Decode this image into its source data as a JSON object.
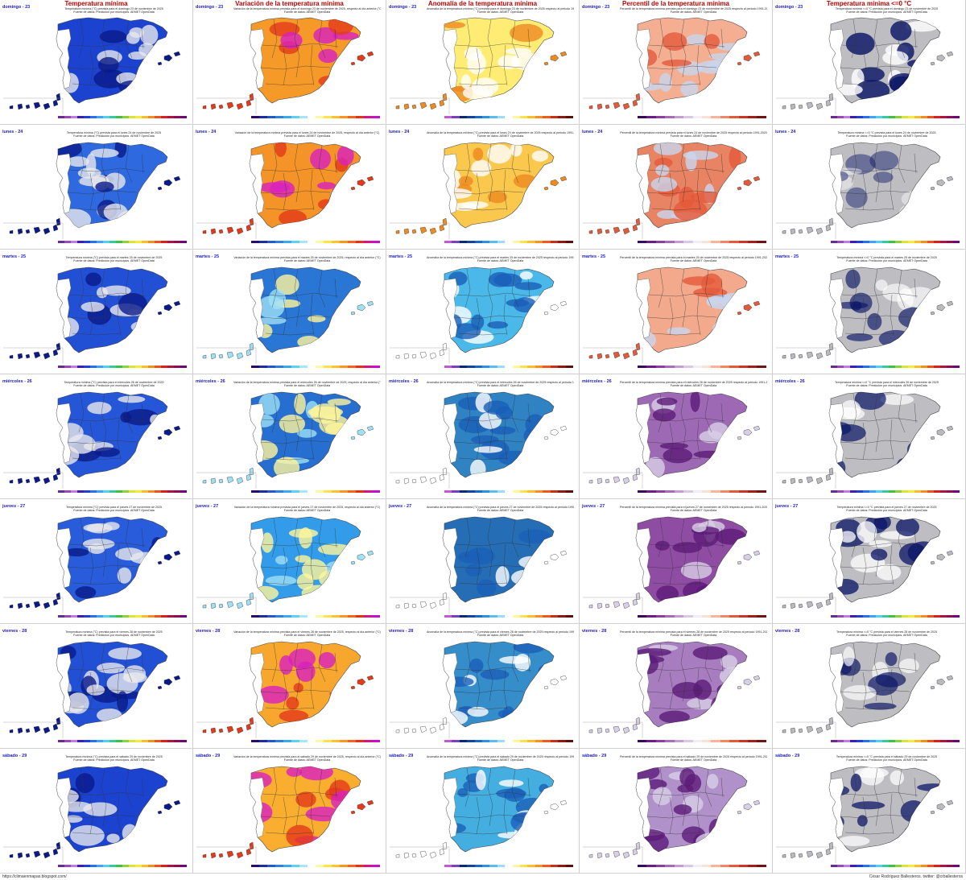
{
  "columns": [
    {
      "title": "Temperatura mínima",
      "style": "tmin"
    },
    {
      "title": "Variación de la temperatura mínima",
      "style": "var"
    },
    {
      "title": "Anomalía de la temperatura mínima",
      "style": "anom"
    },
    {
      "title": "Percentil de la temperatura mínima",
      "style": "perc"
    },
    {
      "title": "Temperatura mínima <=0 °C",
      "style": "frost"
    }
  ],
  "days": [
    {
      "label": "domingo - 23",
      "tint": {
        "tmin": 0.85,
        "var": 0.9,
        "anom": 0.55,
        "perc": 0.55,
        "frost": 0.85
      }
    },
    {
      "label": "lunes - 24",
      "tint": {
        "tmin": 0.55,
        "var": 0.95,
        "anom": 0.85,
        "perc": 0.9,
        "frost": 0.2
      }
    },
    {
      "label": "martes - 25",
      "tint": {
        "tmin": 0.75,
        "var": 0.2,
        "anom": 0.45,
        "perc": 0.6,
        "frost": 0.55
      }
    },
    {
      "label": "miércoles - 26",
      "tint": {
        "tmin": 0.7,
        "var": 0.15,
        "anom": 0.2,
        "perc": 0.25,
        "frost": 0.65
      }
    },
    {
      "label": "jueves - 27",
      "tint": {
        "tmin": 0.65,
        "var": 0.45,
        "anom": 0.1,
        "perc": 0.1,
        "frost": 0.75
      }
    },
    {
      "label": "viernes - 28",
      "tint": {
        "tmin": 0.75,
        "var": 0.8,
        "anom": 0.25,
        "perc": 0.35,
        "frost": 0.6
      }
    },
    {
      "label": "sábado - 29",
      "tint": {
        "tmin": 0.85,
        "var": 0.75,
        "anom": 0.4,
        "perc": 0.45,
        "frost": 0.7
      }
    }
  ],
  "subtitles": {
    "tmin": [
      "Temperatura mínima (°C) prevista para el %DAY% de noviembre de 2025",
      "Fuente de datos: Predicción por municipios. AEMET OpenData"
    ],
    "var": [
      "Variación de la temperatura mínima prevista para el %DAY% de noviembre de 2025, respecto al día anterior (°C)",
      "Fuente de datos: AEMET OpenData"
    ],
    "anom": [
      "Anomalía de la temperatura mínima (°C) prevista para el %DAY% de noviembre de 2025 respecto al periodo 1991-2020",
      "Fuente de datos: AEMET OpenData"
    ],
    "perc": [
      "Percentil de la temperatura mínima prevista para el %DAY% de noviembre de 2025 respecto al periodo 1991-2020",
      "Fuente de datos: AEMET OpenData"
    ],
    "frost": [
      "Temperatura mínima <=0 °C prevista para el %DAY% de noviembre de 2025",
      "Fuente de datos: Predicción por municipios. AEMET OpenData"
    ]
  },
  "colorbars": {
    "tmin": [
      "#6b2a8e",
      "#9a49b8",
      "#c37be0",
      "#3a1fb0",
      "#1f3fd8",
      "#2d6ef0",
      "#3ea4f5",
      "#4fd0f0",
      "#36c9a0",
      "#3fbf4a",
      "#8cd23c",
      "#d9e43a",
      "#f8e93b",
      "#f7c02b",
      "#f28e23",
      "#e8541b",
      "#d71f1f",
      "#b0133f",
      "#8d0c5b",
      "#6a0a73"
    ],
    "var": [
      "#2a0b6a",
      "#1b2f9e",
      "#2458c8",
      "#2d82e0",
      "#3aaaf0",
      "#60cff2",
      "#a7e6f6",
      "#ffffff",
      "#fff7a6",
      "#ffe34d",
      "#ffc12e",
      "#ff9424",
      "#f5621c",
      "#e5301c",
      "#d8128a",
      "#c60fc8"
    ],
    "anom": [
      "#c05ad0",
      "#7a3fc0",
      "#0b2a6e",
      "#12469e",
      "#1a6bc6",
      "#2f92e0",
      "#5bbcf0",
      "#9bdcf6",
      "#ffffff",
      "#fff6a0",
      "#ffe24a",
      "#ffbf2c",
      "#fb8e23",
      "#ee5a1c",
      "#c72f1a",
      "#8a1a12",
      "#5a1208"
    ],
    "perc": [
      "#3b0a57",
      "#6a1d85",
      "#8c3fa0",
      "#a86cb7",
      "#c19dd0",
      "#dcc8e6",
      "#f2eef6",
      "#fbe0d3",
      "#f6b59a",
      "#ee8763",
      "#e35a3b",
      "#c93625",
      "#a11f17",
      "#6e1510"
    ],
    "frost": [
      "#6b2a8e",
      "#9a49b8",
      "#c37be0",
      "#3a1fb0",
      "#1f3fd8",
      "#2d6ef0",
      "#3ea4f5",
      "#4fd0f0",
      "#36c9a0",
      "#3fbf4a",
      "#8cd23c",
      "#d9e43a",
      "#f8e93b",
      "#f7c02b",
      "#f28e23",
      "#e8541b",
      "#d71f1f",
      "#b0133f",
      "#8d0c5b",
      "#6a0a73"
    ]
  },
  "footer": {
    "left": "https://climaenmapas.blogspot.com/",
    "right": "César Rodríguez Ballesteros. twitter: @crballesteros"
  }
}
